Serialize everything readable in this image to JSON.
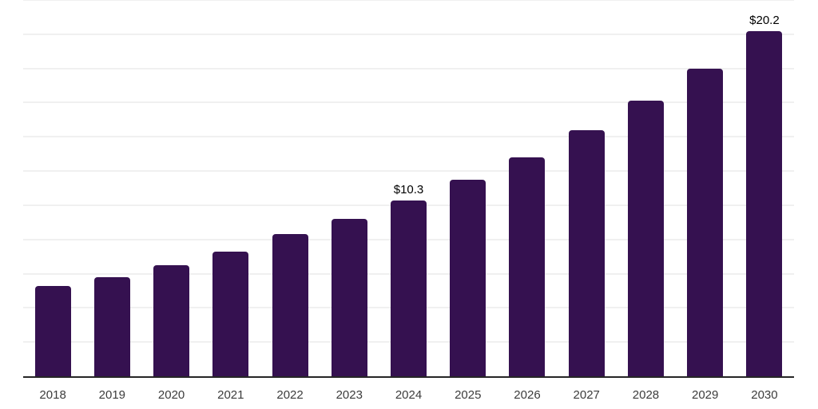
{
  "chart_data": {
    "type": "bar",
    "title": "",
    "xlabel": "",
    "ylabel": "",
    "categories": [
      "2018",
      "2019",
      "2020",
      "2021",
      "2022",
      "2023",
      "2024",
      "2025",
      "2026",
      "2027",
      "2028",
      "2029",
      "2030"
    ],
    "values": [
      5.3,
      5.8,
      6.5,
      7.3,
      8.3,
      9.2,
      10.3,
      11.5,
      12.8,
      14.4,
      16.1,
      18.0,
      20.2
    ],
    "data_labels": [
      "",
      "",
      "",
      "",
      "",
      "",
      "$10.3",
      "",
      "",
      "",
      "",
      "",
      "$20.2"
    ],
    "ylim": [
      0,
      22
    ],
    "gridline_step": 2,
    "grid": "horizontal",
    "legend": "none",
    "colors": {
      "bar": "#351150",
      "gridline": "#f0f0f0",
      "axis_line": "#262626",
      "tick_label": "#3c3c3c",
      "data_label": "#000000",
      "background": "#ffffff"
    }
  }
}
